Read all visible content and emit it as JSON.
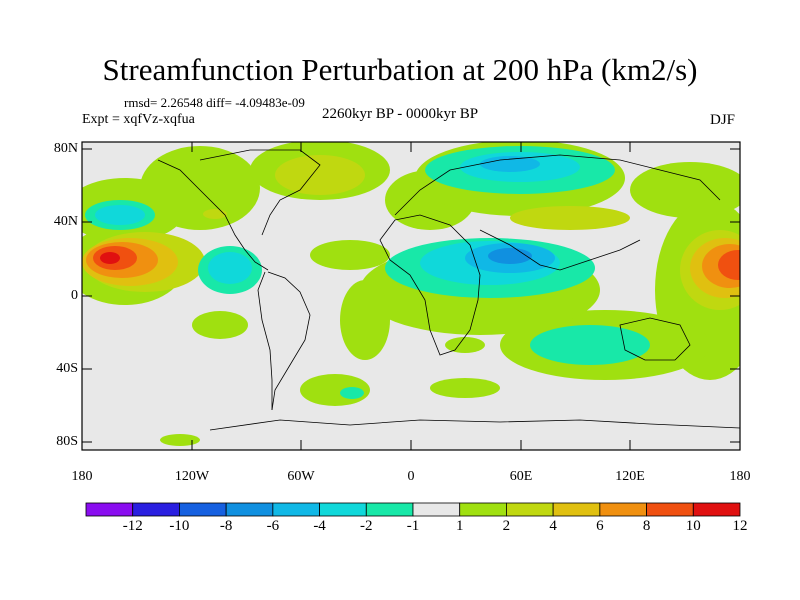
{
  "header": {
    "title": "Streamfunction Perturbation at 200 hPa (km2/s)",
    "stats": "rmsd= 2.26548 diff= -4.09483e-09",
    "experiment": "Expt = xqfVz-xqfua",
    "period": "2260kyr BP - 0000kyr BP",
    "season": "DJF"
  },
  "map": {
    "lat_labels": [
      "80N",
      "40N",
      "0",
      "40S",
      "80S"
    ],
    "lon_labels": [
      "180",
      "120W",
      "60W",
      "0",
      "60E",
      "120E",
      "180"
    ],
    "background_color": "#e8e8e8"
  },
  "colorbar": {
    "labels": [
      "-12",
      "-10",
      "-8",
      "-6",
      "-4",
      "-2",
      "-1",
      "1",
      "2",
      "4",
      "6",
      "8",
      "10",
      "12"
    ],
    "colors": [
      "#8a0df0",
      "#2a1fe0",
      "#1660e0",
      "#1090e0",
      "#10b8e6",
      "#10d8da",
      "#18e8a8",
      "#e8e8e8",
      "#a0e010",
      "#c0d810",
      "#e0c010",
      "#f09010",
      "#f05010",
      "#e01010"
    ]
  }
}
